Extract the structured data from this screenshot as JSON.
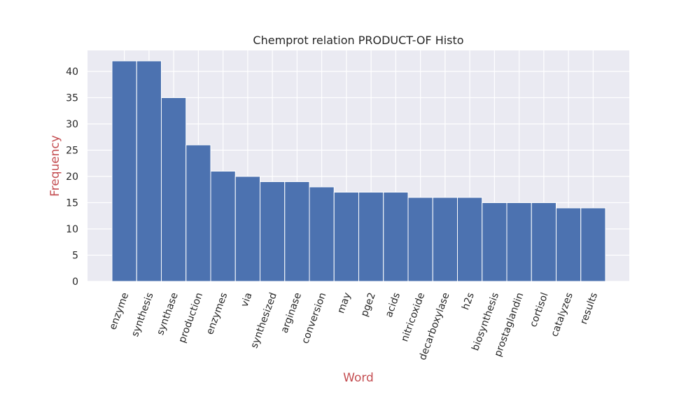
{
  "chart_data": {
    "type": "bar",
    "title": "Chemprot relation PRODUCT-OF Histo",
    "xlabel": "Word",
    "ylabel": "Frequency",
    "categories": [
      "enzyme",
      "synthesis",
      "synthase",
      "production",
      "enzymes",
      "via",
      "synthesized",
      "arginase",
      "conversion",
      "may",
      "pge2",
      "acids",
      "nitricoxide",
      "decarboxylase",
      "h2s",
      "biosynthesis",
      "prostaglandin",
      "cortisol",
      "catalyzes",
      "results"
    ],
    "values": [
      42,
      42,
      35,
      26,
      21,
      20,
      19,
      19,
      18,
      17,
      17,
      17,
      16,
      16,
      16,
      15,
      15,
      15,
      14,
      14
    ],
    "ylim": [
      0,
      44
    ],
    "yticks": [
      0,
      5,
      10,
      15,
      20,
      25,
      30,
      35,
      40
    ],
    "grid": true,
    "colors": {
      "bar": "#4c72b0",
      "plot_bg": "#eaeaf2",
      "grid": "#ffffff",
      "axis_label": "#c44e52",
      "text": "#262626"
    }
  }
}
